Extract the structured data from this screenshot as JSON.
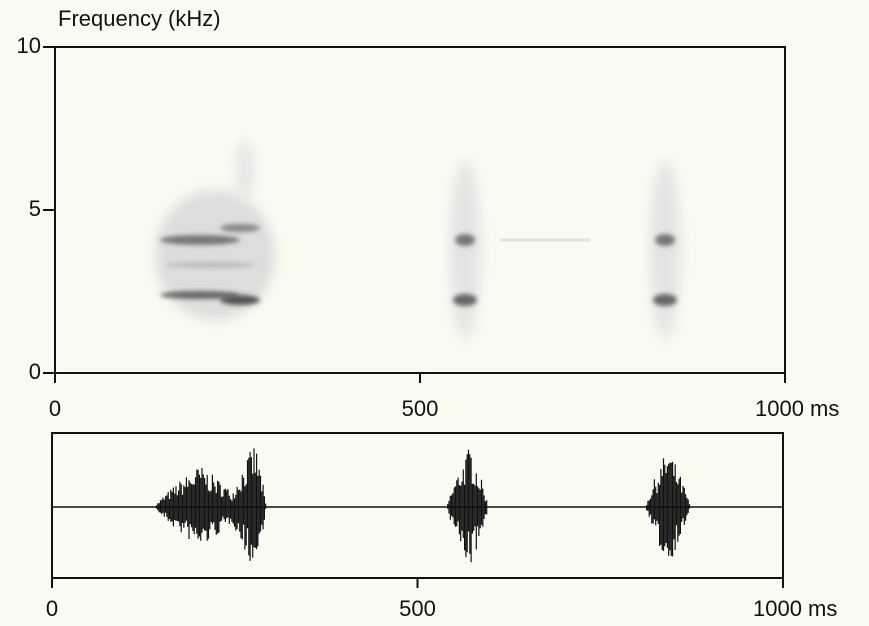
{
  "chart_data": [
    {
      "type": "spectrogram",
      "y_label": "Frequency (kHz)",
      "xlim": [
        0,
        1000
      ],
      "xticks": [
        0,
        500,
        {
          "value": 1000,
          "label": "1000 ms"
        }
      ],
      "ylim": [
        0,
        10
      ],
      "yticks": [
        0,
        5,
        10
      ]
    },
    {
      "type": "waveform",
      "xlim": [
        0,
        1000
      ],
      "xticks": [
        0,
        500,
        {
          "value": 1000,
          "label": "1000 ms"
        }
      ]
    }
  ]
}
